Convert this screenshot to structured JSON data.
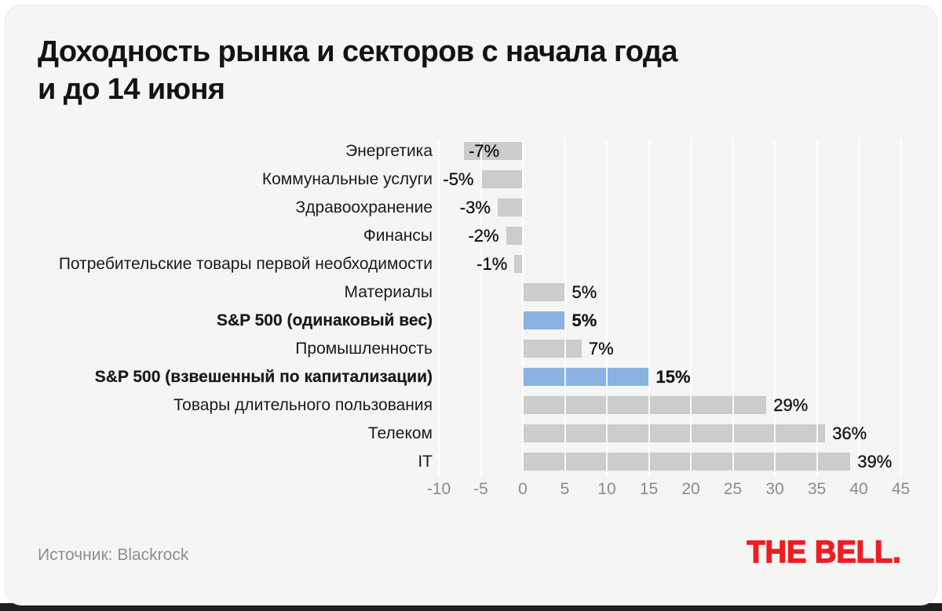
{
  "title": {
    "line1": "Доходность рынка и секторов с начала года",
    "line2": "и до 14 июня"
  },
  "footer": {
    "source": "Источник: Blackrock",
    "logo": "THE BELL."
  },
  "colors": {
    "card_bg": "#f5f5f3",
    "bar": "#cccccb",
    "bar_highlight": "#8ab3e2",
    "accent_red": "#ee1d23",
    "text": "#131313",
    "muted": "#8b8b8b"
  },
  "chart_data": {
    "type": "bar",
    "orientation": "horizontal",
    "title": "Доходность рынка и секторов с начала года и до 14 июня",
    "source": "Blackrock",
    "value_suffix": "%",
    "xlim": [
      -10,
      45
    ],
    "x_ticks": [
      -10,
      -5,
      0,
      5,
      10,
      15,
      20,
      25,
      30,
      35,
      40,
      45
    ],
    "grid": "vertical",
    "rows": [
      {
        "label": "Энергетика",
        "value": -7,
        "display": "-7%",
        "highlight": false
      },
      {
        "label": "Коммунальные услуги",
        "value": -5,
        "display": "-5%",
        "highlight": false
      },
      {
        "label": "Здравоохранение",
        "value": -3,
        "display": "-3%",
        "highlight": false
      },
      {
        "label": "Финансы",
        "value": -2,
        "display": "-2%",
        "highlight": false
      },
      {
        "label": "Потребительские товары первой необходимости",
        "value": -1,
        "display": "-1%",
        "highlight": false
      },
      {
        "label": "Материалы",
        "value": 5,
        "display": "5%",
        "highlight": false
      },
      {
        "label": "S&P 500 (одинаковый вес)",
        "value": 5,
        "display": "5%",
        "highlight": true
      },
      {
        "label": "Промышленность",
        "value": 7,
        "display": "7%",
        "highlight": false
      },
      {
        "label": "S&P 500 (взвешенный по капитализации)",
        "value": 15,
        "display": "15%",
        "highlight": true
      },
      {
        "label": "Товары длительного пользования",
        "value": 29,
        "display": "29%",
        "highlight": false
      },
      {
        "label": "Телеком",
        "value": 36,
        "display": "36%",
        "highlight": false
      },
      {
        "label": "IT",
        "value": 39,
        "display": "39%",
        "highlight": false
      }
    ]
  }
}
